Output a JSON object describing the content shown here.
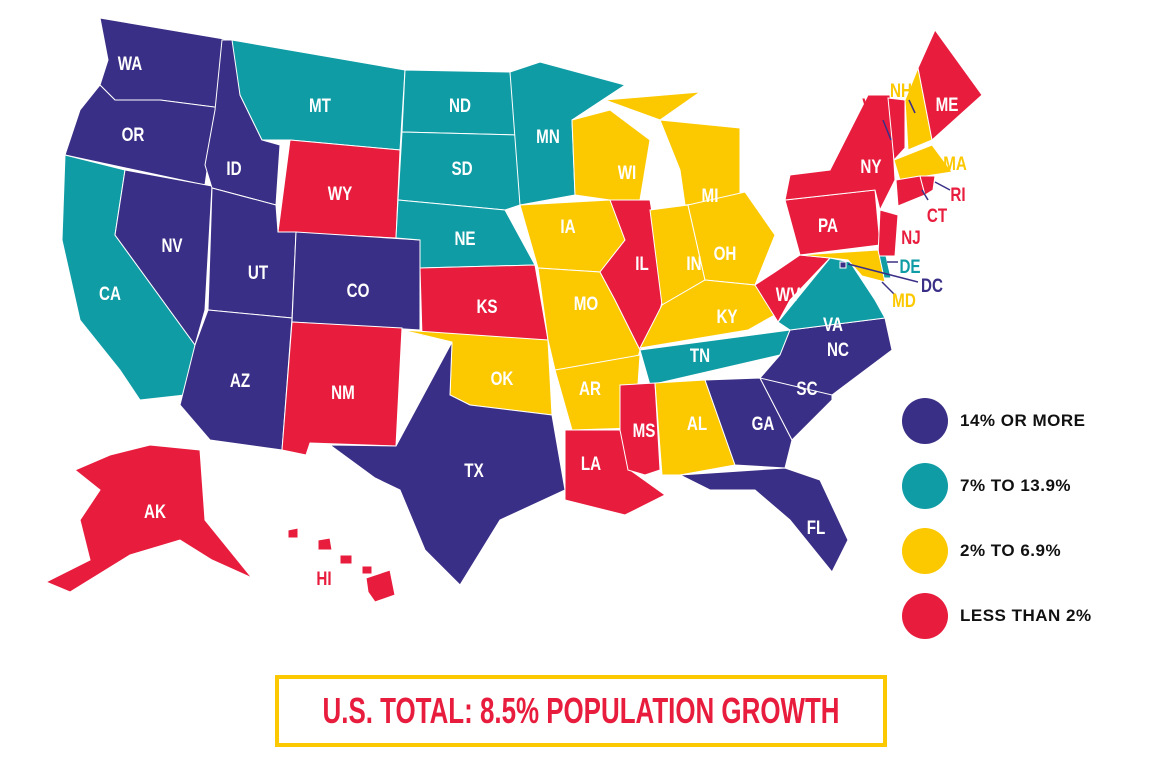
{
  "colors": {
    "14_or_more": "#3a2f86",
    "7_to_13_9": "#0f9ca5",
    "2_to_6_9": "#fcc800",
    "less_than_2": "#e81c3d"
  },
  "legend": [
    {
      "key": "14_or_more",
      "label": "14% OR MORE"
    },
    {
      "key": "7_to_13_9",
      "label": "7% TO 13.9%"
    },
    {
      "key": "2_to_6_9",
      "label": "2% TO 6.9%"
    },
    {
      "key": "less_than_2",
      "label": "LESS THAN 2%"
    }
  ],
  "states": [
    {
      "abbr": "WA",
      "category": "14_or_more"
    },
    {
      "abbr": "OR",
      "category": "14_or_more"
    },
    {
      "abbr": "CA",
      "category": "7_to_13_9"
    },
    {
      "abbr": "NV",
      "category": "14_or_more"
    },
    {
      "abbr": "ID",
      "category": "14_or_more"
    },
    {
      "abbr": "MT",
      "category": "7_to_13_9"
    },
    {
      "abbr": "WY",
      "category": "less_than_2"
    },
    {
      "abbr": "UT",
      "category": "14_or_more"
    },
    {
      "abbr": "CO",
      "category": "14_or_more"
    },
    {
      "abbr": "AZ",
      "category": "14_or_more"
    },
    {
      "abbr": "NM",
      "category": "less_than_2"
    },
    {
      "abbr": "ND",
      "category": "7_to_13_9"
    },
    {
      "abbr": "SD",
      "category": "7_to_13_9"
    },
    {
      "abbr": "NE",
      "category": "7_to_13_9"
    },
    {
      "abbr": "KS",
      "category": "less_than_2"
    },
    {
      "abbr": "OK",
      "category": "2_to_6_9"
    },
    {
      "abbr": "TX",
      "category": "14_or_more"
    },
    {
      "abbr": "MN",
      "category": "7_to_13_9"
    },
    {
      "abbr": "IA",
      "category": "2_to_6_9"
    },
    {
      "abbr": "MO",
      "category": "2_to_6_9"
    },
    {
      "abbr": "AR",
      "category": "2_to_6_9"
    },
    {
      "abbr": "LA",
      "category": "less_than_2"
    },
    {
      "abbr": "WI",
      "category": "2_to_6_9"
    },
    {
      "abbr": "IL",
      "category": "less_than_2"
    },
    {
      "abbr": "MI",
      "category": "2_to_6_9"
    },
    {
      "abbr": "IN",
      "category": "2_to_6_9"
    },
    {
      "abbr": "OH",
      "category": "2_to_6_9"
    },
    {
      "abbr": "KY",
      "category": "2_to_6_9"
    },
    {
      "abbr": "TN",
      "category": "7_to_13_9"
    },
    {
      "abbr": "MS",
      "category": "less_than_2"
    },
    {
      "abbr": "AL",
      "category": "2_to_6_9"
    },
    {
      "abbr": "GA",
      "category": "14_or_more"
    },
    {
      "abbr": "FL",
      "category": "14_or_more"
    },
    {
      "abbr": "SC",
      "category": "14_or_more"
    },
    {
      "abbr": "NC",
      "category": "14_or_more"
    },
    {
      "abbr": "VA",
      "category": "7_to_13_9"
    },
    {
      "abbr": "WV",
      "category": "less_than_2"
    },
    {
      "abbr": "PA",
      "category": "less_than_2"
    },
    {
      "abbr": "NY",
      "category": "less_than_2"
    },
    {
      "abbr": "VT",
      "category": "less_than_2"
    },
    {
      "abbr": "NH",
      "category": "2_to_6_9"
    },
    {
      "abbr": "ME",
      "category": "less_than_2"
    },
    {
      "abbr": "MA",
      "category": "2_to_6_9"
    },
    {
      "abbr": "CT",
      "category": "less_than_2"
    },
    {
      "abbr": "RI",
      "category": "less_than_2"
    },
    {
      "abbr": "NJ",
      "category": "less_than_2"
    },
    {
      "abbr": "DE",
      "category": "7_to_13_9"
    },
    {
      "abbr": "MD",
      "category": "2_to_6_9"
    },
    {
      "abbr": "DC",
      "category": "14_or_more"
    },
    {
      "abbr": "AK",
      "category": "less_than_2"
    },
    {
      "abbr": "HI",
      "category": "less_than_2"
    }
  ],
  "total_banner": "U.S. TOTAL: 8.5% POPULATION GROWTH"
}
